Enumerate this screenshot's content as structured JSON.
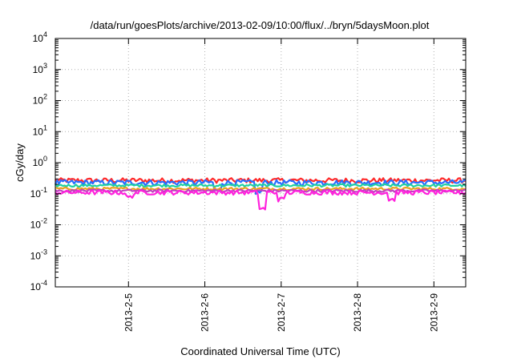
{
  "chart_data": {
    "type": "line",
    "title": "/data/run/goesPlots/archive/2013-02-09/10:00/flux/../bryn/5daysMoon.plot",
    "xlabel": "Coordinated Universal Time (UTC)",
    "ylabel": "cGy/day",
    "yscale": "log",
    "ylim": [
      0.0001,
      10000
    ],
    "xlim": [
      "2013-02-04 01:00",
      "2013-02-09 10:00"
    ],
    "grid": true,
    "y_ticks": [
      {
        "value": 0.0001,
        "base": "10",
        "exp": "-4"
      },
      {
        "value": 0.001,
        "base": "10",
        "exp": "-3"
      },
      {
        "value": 0.01,
        "base": "10",
        "exp": "-2"
      },
      {
        "value": 0.1,
        "base": "10",
        "exp": "-1"
      },
      {
        "value": 1,
        "base": "10",
        "exp": "0"
      },
      {
        "value": 10,
        "base": "10",
        "exp": "1"
      },
      {
        "value": 100,
        "base": "10",
        "exp": "2"
      },
      {
        "value": 1000,
        "base": "10",
        "exp": "3"
      },
      {
        "value": 10000,
        "base": "10",
        "exp": "4"
      }
    ],
    "x_ticks": [
      {
        "value": "2013-02-05",
        "label": "2013-2-5"
      },
      {
        "value": "2013-02-06",
        "label": "2013-2-6"
      },
      {
        "value": "2013-02-07",
        "label": "2013-2-7"
      },
      {
        "value": "2013-02-08",
        "label": "2013-2-8"
      },
      {
        "value": "2013-02-09",
        "label": "2013-2-9"
      }
    ],
    "series": [
      {
        "color": "#ff2a2a",
        "level": 0.27,
        "amp": 0.18,
        "dips": []
      },
      {
        "color": "#2a6dff",
        "level": 0.23,
        "amp": 0.2,
        "dips": [
          {
            "at": "2013-02-06 04:00",
            "factor": 0.55
          },
          {
            "at": "2013-02-06 17:00",
            "factor": 0.5
          }
        ]
      },
      {
        "color": "#20d0a0",
        "level": 0.185,
        "amp": 0.1,
        "dips": []
      },
      {
        "color": "#e8a020",
        "level": 0.145,
        "amp": 0.1,
        "dips": []
      },
      {
        "color": "#c040c0",
        "level": 0.125,
        "amp": 0.1,
        "dips": []
      },
      {
        "color": "#ff22dd",
        "level": 0.11,
        "amp": 0.16,
        "dips": [
          {
            "at": "2013-02-05 00:00",
            "factor": 0.7
          },
          {
            "at": "2013-02-06 18:00",
            "factor": 0.3
          },
          {
            "at": "2013-02-07 00:00",
            "factor": 0.6
          },
          {
            "at": "2013-02-08 11:00",
            "factor": 0.6
          }
        ]
      }
    ]
  }
}
